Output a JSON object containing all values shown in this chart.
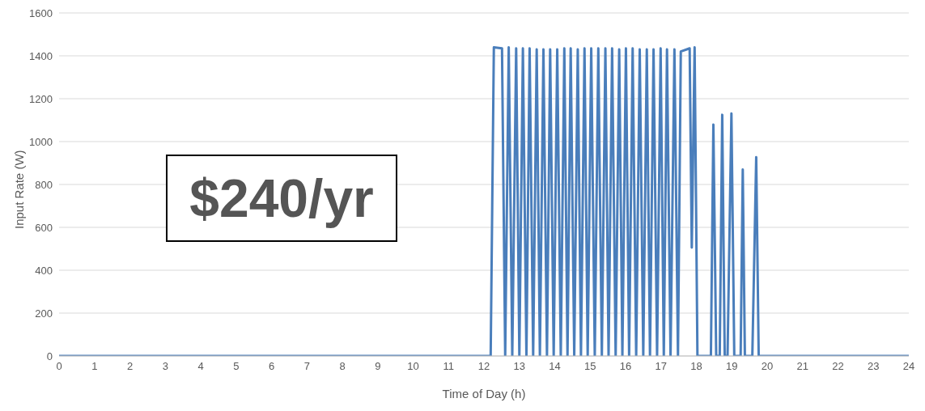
{
  "chart_data": {
    "type": "line",
    "xlabel": "Time of Day (h)",
    "ylabel": "Input Rate (W)",
    "annotations": [
      "$240/yr"
    ],
    "x": [
      0,
      12.19,
      12.28,
      12.51,
      12.6,
      12.7,
      12.8,
      12.91,
      13.0,
      13.1,
      13.2,
      13.29,
      13.39,
      13.49,
      13.58,
      13.68,
      13.78,
      13.87,
      13.97,
      14.07,
      14.17,
      14.27,
      14.36,
      14.45,
      14.55,
      14.65,
      14.74,
      14.84,
      14.93,
      15.03,
      15.13,
      15.23,
      15.33,
      15.43,
      15.52,
      15.62,
      15.72,
      15.82,
      15.91,
      16.01,
      16.1,
      16.2,
      16.3,
      16.4,
      16.5,
      16.6,
      16.69,
      16.79,
      16.89,
      16.99,
      17.08,
      17.17,
      17.27,
      17.38,
      17.48,
      17.56,
      17.81,
      17.87,
      17.95,
      18.03,
      18.41,
      18.48,
      18.56,
      18.66,
      18.73,
      18.8,
      18.88,
      18.99,
      19.07,
      19.25,
      19.31,
      19.37,
      19.58,
      19.69,
      19.76,
      24
    ],
    "series": [
      {
        "color": "#4a7ebb",
        "values": [
          0,
          0,
          1440,
          1435,
          0,
          1440,
          0,
          1435,
          0,
          1435,
          0,
          1435,
          0,
          1430,
          0,
          1430,
          0,
          1430,
          0,
          1430,
          0,
          1435,
          0,
          1435,
          0,
          1430,
          0,
          1435,
          0,
          1435,
          0,
          1435,
          0,
          1435,
          0,
          1435,
          0,
          1430,
          0,
          1435,
          0,
          1435,
          0,
          1430,
          0,
          1430,
          0,
          1430,
          0,
          1435,
          0,
          1430,
          0,
          1430,
          0,
          1420,
          1435,
          506,
          1440,
          0,
          0,
          1079,
          0,
          0,
          1125,
          0,
          0,
          1131,
          0,
          0,
          870,
          0,
          0,
          927,
          0,
          0
        ]
      }
    ],
    "xlim": [
      0,
      24
    ],
    "xticks": [
      0,
      1,
      2,
      3,
      4,
      5,
      6,
      7,
      8,
      9,
      10,
      11,
      12,
      13,
      14,
      15,
      16,
      17,
      18,
      19,
      20,
      21,
      22,
      23,
      24
    ],
    "ylim": [
      0,
      1600
    ],
    "yticks": [
      0,
      200,
      400,
      600,
      800,
      1000,
      1200,
      1400,
      1600
    ],
    "grid": "y",
    "legend": false,
    "marker": "none",
    "line_style": "solid"
  }
}
